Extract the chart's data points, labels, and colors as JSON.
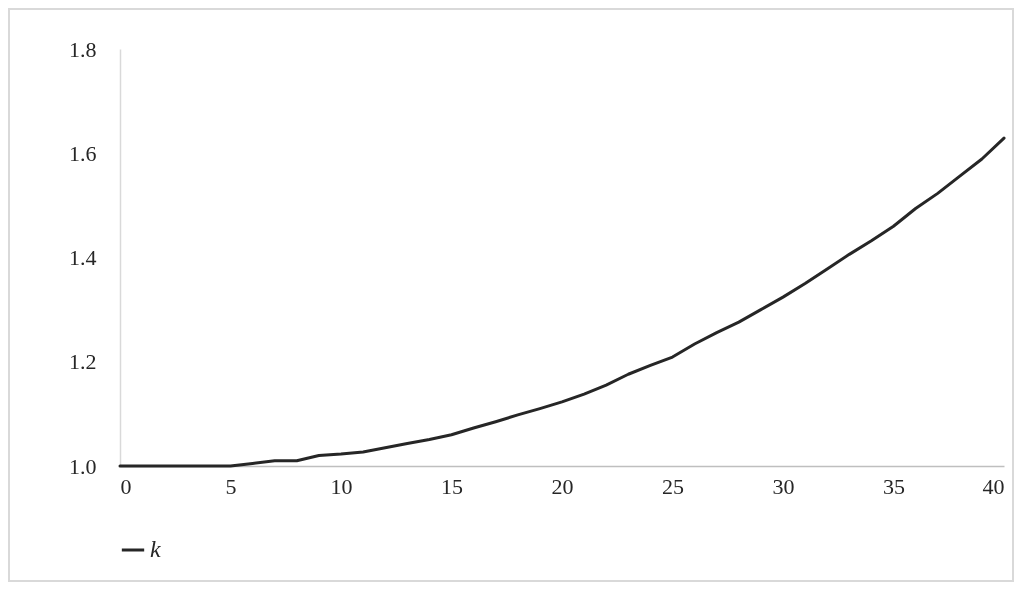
{
  "chart_data": {
    "type": "line",
    "x": [
      0,
      1,
      2,
      3,
      4,
      5,
      6,
      7,
      8,
      9,
      10,
      11,
      12,
      13,
      14,
      15,
      16,
      17,
      18,
      19,
      20,
      21,
      22,
      23,
      24,
      25,
      26,
      27,
      28,
      29,
      30,
      31,
      32,
      33,
      34,
      35,
      36,
      37,
      38,
      39,
      40
    ],
    "series": [
      {
        "name": "k",
        "color": "#262626",
        "values": [
          1.0,
          1.0,
          1.0,
          1.0,
          1.0,
          1.0,
          1.005,
          1.01,
          1.01,
          1.02,
          1.023,
          1.027,
          1.035,
          1.043,
          1.051,
          1.06,
          1.073,
          1.085,
          1.098,
          1.11,
          1.123,
          1.138,
          1.155,
          1.176,
          1.193,
          1.209,
          1.234,
          1.256,
          1.276,
          1.3,
          1.324,
          1.35,
          1.378,
          1.406,
          1.432,
          1.46,
          1.494,
          1.523,
          1.556,
          1.589,
          1.629
        ]
      }
    ],
    "xlim": [
      0,
      40
    ],
    "xticks": [
      0,
      5,
      10,
      15,
      20,
      25,
      30,
      35,
      40
    ],
    "ylim": [
      1.0,
      1.8
    ],
    "yticks": [
      {
        "value": 1.0,
        "label": "1.0"
      },
      {
        "value": 1.2,
        "label": "1.2"
      },
      {
        "value": 1.4,
        "label": "1.4"
      },
      {
        "value": 1.6,
        "label": "1.6"
      },
      {
        "value": 1.8,
        "label": "1.8"
      }
    ],
    "grid": false,
    "legend": "bottom",
    "marker": "none",
    "line_style": "solid"
  }
}
